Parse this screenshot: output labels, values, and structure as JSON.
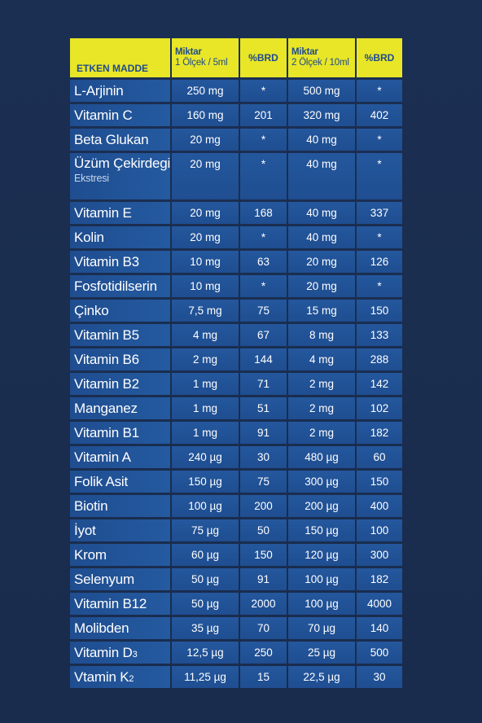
{
  "colors": {
    "background": "#1a2d50",
    "header_bg": "#e8e627",
    "header_text": "#1f4b8e",
    "cell_bg": "#2157a0",
    "cell_text": "#ffffff"
  },
  "header": {
    "ingredient": "ETKEN MADDE",
    "amount1_line1": "Miktar",
    "amount1_line2": "1 Ölçek / 5ml",
    "rda1": "%BRD",
    "amount2_line1": "Miktar",
    "amount2_line2": "2 Ölçek / 10ml",
    "rda2": "%BRD"
  },
  "rows": [
    {
      "name": "L-Arjinin",
      "amt1": "250 mg",
      "rda1": "*",
      "amt2": "500 mg",
      "rda2": "*"
    },
    {
      "name": "Vitamin C",
      "amt1": "160 mg",
      "rda1": "201",
      "amt2": "320 mg",
      "rda2": "402"
    },
    {
      "name": "Beta Glukan",
      "amt1": "20 mg",
      "rda1": "*",
      "amt2": "40 mg",
      "rda2": "*"
    },
    {
      "name": "Üzüm Çekirdegi",
      "sub": "Ekstresi",
      "amt1": "20 mg",
      "rda1": "*",
      "amt2": "40 mg",
      "rda2": "*"
    },
    {
      "name": "Vitamin E",
      "amt1": "20 mg",
      "rda1": "168",
      "amt2": "40 mg",
      "rda2": "337"
    },
    {
      "name": "Kolin",
      "amt1": "20 mg",
      "rda1": "*",
      "amt2": "40 mg",
      "rda2": "*"
    },
    {
      "name": "Vitamin B3",
      "amt1": "10 mg",
      "rda1": "63",
      "amt2": "20 mg",
      "rda2": "126"
    },
    {
      "name": "Fosfotidilserin",
      "amt1": "10 mg",
      "rda1": "*",
      "amt2": "20 mg",
      "rda2": "*"
    },
    {
      "name": "Çinko",
      "amt1": "7,5 mg",
      "rda1": "75",
      "amt2": "15 mg",
      "rda2": "150"
    },
    {
      "name": "Vitamin B5",
      "amt1": "4 mg",
      "rda1": "67",
      "amt2": "8 mg",
      "rda2": "133"
    },
    {
      "name": "Vitamin B6",
      "amt1": "2 mg",
      "rda1": "144",
      "amt2": "4 mg",
      "rda2": "288"
    },
    {
      "name": "Vitamin B2",
      "amt1": "1 mg",
      "rda1": "71",
      "amt2": "2 mg",
      "rda2": "142"
    },
    {
      "name": "Manganez",
      "amt1": "1 mg",
      "rda1": "51",
      "amt2": "2 mg",
      "rda2": "102"
    },
    {
      "name": "Vitamin B1",
      "amt1": "1 mg",
      "rda1": "91",
      "amt2": "2 mg",
      "rda2": "182"
    },
    {
      "name": "Vitamin A",
      "amt1": "240 µg",
      "rda1": "30",
      "amt2": "480 µg",
      "rda2": "60"
    },
    {
      "name": "Folik Asit",
      "amt1": "150 µg",
      "rda1": "75",
      "amt2": "300 µg",
      "rda2": "150"
    },
    {
      "name": "Biotin",
      "amt1": "100 µg",
      "rda1": "200",
      "amt2": "200 µg",
      "rda2": "400"
    },
    {
      "name": "İyot",
      "amt1": "75 µg",
      "rda1": "50",
      "amt2": "150 µg",
      "rda2": "100"
    },
    {
      "name": "Krom",
      "amt1": "60 µg",
      "rda1": "150",
      "amt2": "120 µg",
      "rda2": "300"
    },
    {
      "name": "Selenyum",
      "amt1": "50 µg",
      "rda1": "91",
      "amt2": "100 µg",
      "rda2": "182"
    },
    {
      "name": "Vitamin B12",
      "amt1": "50 µg",
      "rda1": "2000",
      "amt2": "100 µg",
      "rda2": "4000"
    },
    {
      "name": "Molibden",
      "amt1": "35 µg",
      "rda1": "70",
      "amt2": "70 µg",
      "rda2": "140"
    },
    {
      "name": "Vitamin D",
      "name_small": "3",
      "amt1": "12,5 µg",
      "rda1": "250",
      "amt2": "25 µg",
      "rda2": "500"
    },
    {
      "name": "Vtamin K",
      "name_small": "2",
      "amt1": "11,25 µg",
      "rda1": "15",
      "amt2": "22,5 µg",
      "rda2": "30"
    }
  ]
}
